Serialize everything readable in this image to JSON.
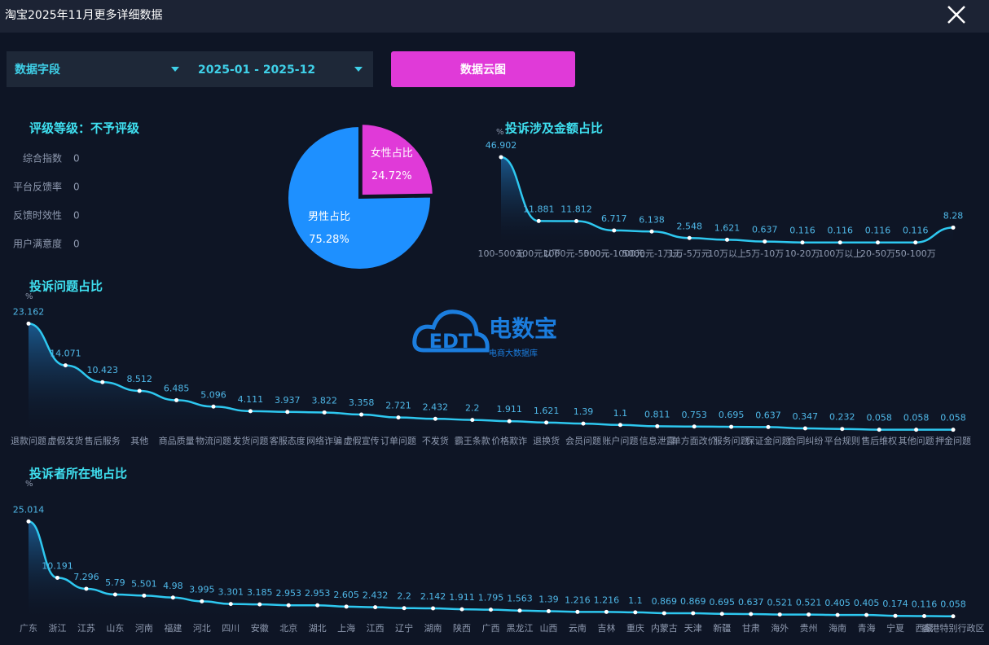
{
  "header": {
    "title": "淘宝2025年11月更多详细数据"
  },
  "controls": {
    "field": "数据字段",
    "range": "2025-01 - 2025-12",
    "button": "数据云图"
  },
  "rating": {
    "title": "评级等级：不予评级",
    "items": [
      {
        "label": "综合指数",
        "value": 0
      },
      {
        "label": "平台反馈率",
        "value": 0
      },
      {
        "label": "反馈时效性",
        "value": 0
      },
      {
        "label": "用户满意度",
        "value": 0
      }
    ]
  },
  "watermark": {
    "logo": "EDT",
    "name": "电数宝",
    "sub": "电商大数据库"
  },
  "chart_data": [
    {
      "type": "pie",
      "categories": [
        "女性占比",
        "男性占比"
      ],
      "values": [
        24.72,
        75.28
      ],
      "value_labels": [
        "24.72%",
        "75.28%"
      ],
      "colors": [
        "#e03ad8",
        "#1e90ff"
      ]
    },
    {
      "type": "line",
      "title": "投诉涉及金额占比",
      "unit": "%",
      "color": "#2ec8f0",
      "categories": [
        "100-500元",
        "100元以下",
        "1000元-5000元",
        "500元-1000元",
        "5000元-1万元",
        "1万-5万元",
        "10万以上",
        "5万-10万",
        "10-20万",
        "100万以上",
        "20-50万",
        "50-100万",
        null
      ],
      "values": [
        46.902,
        11.881,
        11.812,
        6.717,
        6.138,
        2.548,
        1.621,
        0.637,
        0.116,
        0.116,
        0.116,
        0.116,
        8.28
      ],
      "ylim": [
        0,
        50
      ]
    },
    {
      "type": "line",
      "title": "投诉问题占比",
      "unit": "%",
      "color": "#2ec8f0",
      "categories": [
        "退款问题",
        "虚假发货",
        "售后服务",
        "其他",
        "商品质量",
        "物流问题",
        "发货问题",
        "客服态度",
        "网络诈骗",
        "虚假宣传",
        "订单问题",
        "不发货",
        "霸王条款",
        "价格欺诈",
        "退换货",
        "会员问题",
        "账户问题",
        "信息泄露",
        "单方面改价",
        "服务问题",
        "保证金问题",
        "合同纠纷",
        "平台规则",
        "售后维权",
        "其他问题",
        "押金问题"
      ],
      "values": [
        23.162,
        14.071,
        10.423,
        8.512,
        6.485,
        5.096,
        4.111,
        3.937,
        3.822,
        3.358,
        2.721,
        2.432,
        2.2,
        1.911,
        1.621,
        1.39,
        1.1,
        0.811,
        0.753,
        0.695,
        0.637,
        0.347,
        0.232,
        0.058,
        0.058,
        0.058
      ],
      "ylim": [
        0,
        25
      ]
    },
    {
      "type": "line",
      "title": "投诉者所在地占比",
      "unit": "%",
      "color": "#2ec8f0",
      "categories": [
        "广东",
        "浙江",
        "江苏",
        "山东",
        "河南",
        "福建",
        "河北",
        "四川",
        "安徽",
        "北京",
        "湖北",
        "上海",
        "江西",
        "辽宁",
        "湖南",
        "陕西",
        "广西",
        "黑龙江",
        "山西",
        "云南",
        "吉林",
        "重庆",
        "内蒙古",
        "天津",
        "新疆",
        "甘肃",
        "海外",
        "贵州",
        "海南",
        "青海",
        "宁夏",
        "西藏",
        "香港特别行政区"
      ],
      "values": [
        25.014,
        10.191,
        7.296,
        5.79,
        5.501,
        4.98,
        3.995,
        3.301,
        3.185,
        2.953,
        2.953,
        2.605,
        2.432,
        2.2,
        2.142,
        1.911,
        1.795,
        1.563,
        1.39,
        1.216,
        1.216,
        1.1,
        0.869,
        0.869,
        0.695,
        0.637,
        0.521,
        0.521,
        0.405,
        0.405,
        0.174,
        0.116,
        0.058
      ],
      "ylim": [
        0,
        30
      ]
    }
  ]
}
